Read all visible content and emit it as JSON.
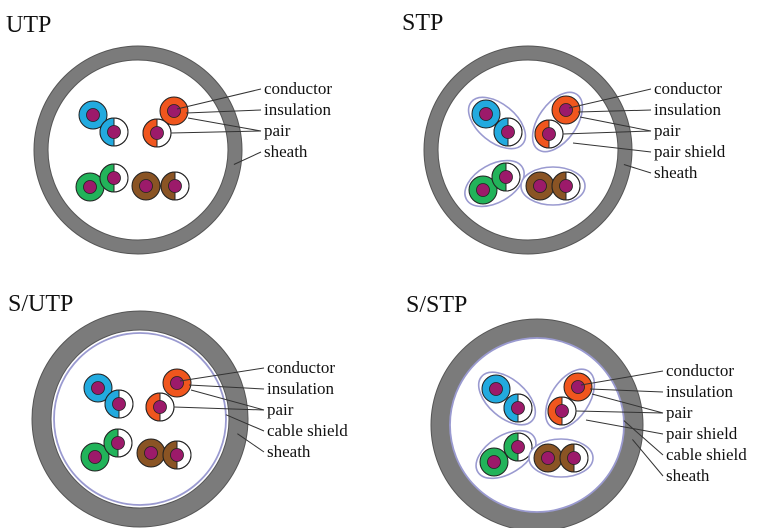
{
  "colors": {
    "sheath": "#7b7b7b",
    "sheath_border": "#555555",
    "shield": "#9a9ad0",
    "conductor": "#9c1a6a",
    "leader": "#333333",
    "pairs": {
      "blue": "#22aadf",
      "orange": "#f0561e",
      "green": "#22b35a",
      "brown": "#8a5424",
      "white": "#ffffff"
    }
  },
  "panels": [
    {
      "id": "utp",
      "title": "UTP",
      "pair_shields": false,
      "cable_shield": false,
      "labels": {
        "conductor": "conductor",
        "insulation": "insulation",
        "pair": "pair",
        "sheath": "sheath"
      }
    },
    {
      "id": "stp",
      "title": "STP",
      "pair_shields": true,
      "cable_shield": false,
      "labels": {
        "conductor": "conductor",
        "insulation": "insulation",
        "pair": "pair",
        "pair_shield": "pair shield",
        "sheath": "sheath"
      }
    },
    {
      "id": "s-utp",
      "title": "S/UTP",
      "pair_shields": false,
      "cable_shield": true,
      "labels": {
        "conductor": "conductor",
        "insulation": "insulation",
        "pair": "pair",
        "cable_shield": "cable shield",
        "sheath": "sheath"
      }
    },
    {
      "id": "s-stp",
      "title": "S/STP",
      "pair_shields": true,
      "cable_shield": true,
      "labels": {
        "conductor": "conductor",
        "insulation": "insulation",
        "pair": "pair",
        "pair_shield": "pair shield",
        "cable_shield": "cable shield",
        "sheath": "sheath"
      }
    }
  ]
}
